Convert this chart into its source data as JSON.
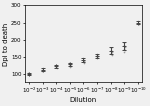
{
  "title": "",
  "xlabel": "Dilution",
  "ylabel": "Dpi to death",
  "x_exponents": [
    -2,
    -3,
    -4,
    -5,
    -6,
    -7,
    -8,
    -9,
    -10
  ],
  "x_values": [
    0.01,
    0.001,
    0.0001,
    1e-05,
    1e-06,
    1e-07,
    1e-08,
    1e-09,
    1e-10
  ],
  "mean_values": [
    100,
    112,
    122,
    128,
    140,
    152,
    168,
    182,
    250
  ],
  "sem_values": [
    3,
    5,
    4,
    5,
    6,
    6,
    10,
    12,
    5
  ],
  "scatter_data": [
    [
      [
        0.01,
        98
      ],
      [
        0.01,
        102
      ]
    ],
    [
      [
        0.001,
        107
      ],
      [
        0.001,
        112
      ],
      [
        0.001,
        118
      ],
      [
        0.001,
        110
      ]
    ],
    [
      [
        0.0001,
        118
      ],
      [
        0.0001,
        122
      ],
      [
        0.0001,
        125
      ],
      [
        0.0001,
        120
      ]
    ],
    [
      [
        1e-05,
        123
      ],
      [
        1e-05,
        128
      ],
      [
        1e-05,
        133
      ],
      [
        1e-05,
        126
      ],
      [
        1e-05,
        121
      ]
    ],
    [
      [
        1e-06,
        135
      ],
      [
        1e-06,
        140
      ],
      [
        1e-06,
        146
      ],
      [
        1e-06,
        138
      ],
      [
        1e-06,
        133
      ]
    ],
    [
      [
        1e-07,
        147
      ],
      [
        1e-07,
        152
      ],
      [
        1e-07,
        158
      ],
      [
        1e-07,
        150
      ],
      [
        1e-07,
        145
      ],
      [
        1e-07,
        154
      ]
    ],
    [
      [
        1e-08,
        160
      ],
      [
        1e-08,
        168
      ],
      [
        1e-08,
        175
      ],
      [
        1e-08,
        163
      ],
      [
        1e-08,
        158
      ],
      [
        1e-08,
        170
      ],
      [
        1e-08,
        155
      ]
    ],
    [
      [
        1e-09,
        172
      ],
      [
        1e-09,
        182
      ],
      [
        1e-09,
        190
      ],
      [
        1e-09,
        178
      ],
      [
        1e-09,
        170
      ],
      [
        1e-09,
        185
      ],
      [
        1e-09,
        165
      ]
    ],
    [
      [
        1e-10,
        246
      ],
      [
        1e-10,
        255
      ]
    ]
  ],
  "ylim": [
    75,
    275
  ],
  "yticks": [
    100,
    150,
    200,
    250,
    300
  ],
  "xlim_left": 0.02,
  "xlim_right": 5e-11,
  "marker_color": "#888888",
  "scatter_marker_size": 1.2,
  "errorbar_color": "#444444",
  "errorbar_linewidth": 0.7,
  "capsize": 1.2,
  "axis_linewidth": 0.5,
  "tick_labelsize": 4.0,
  "label_fontsize": 5.0,
  "background_color": "#f0f0f0"
}
